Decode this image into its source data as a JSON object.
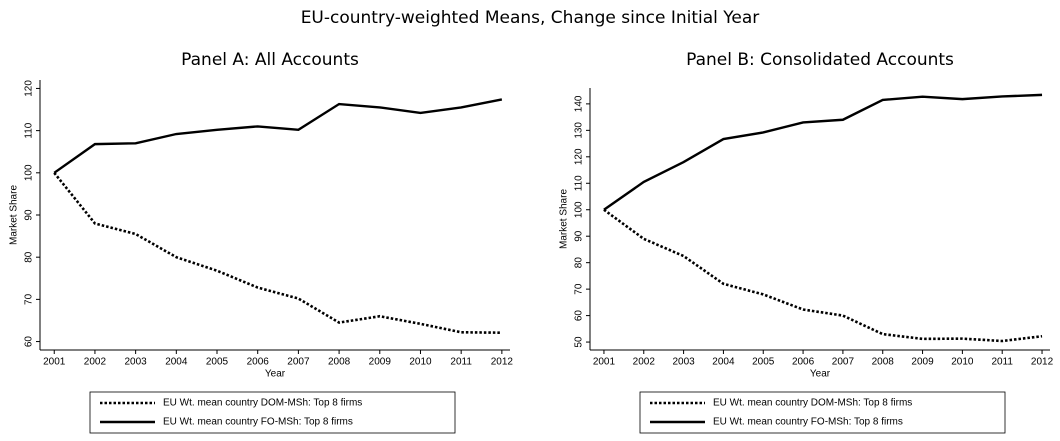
{
  "title": "EU-country-weighted Means, Change since Initial Year",
  "chart_data": [
    {
      "type": "line",
      "title": "Panel A: All Accounts",
      "x_label": "Year",
      "y_label": "Market Share",
      "x": [
        2001,
        2002,
        2003,
        2004,
        2005,
        2006,
        2007,
        2008,
        2009,
        2010,
        2011,
        2012
      ],
      "xlim": [
        2000.65,
        2012.2
      ],
      "xticks": [
        2001,
        2002,
        2003,
        2004,
        2005,
        2006,
        2007,
        2008,
        2009,
        2010,
        2011,
        2012
      ],
      "ylim": [
        58,
        122
      ],
      "yticks": [
        60,
        70,
        80,
        90,
        100,
        110,
        120
      ],
      "grid": false,
      "series": [
        {
          "name": "EU Wt. mean country DOM-MSh: Top 8 firms",
          "color": "#000000",
          "line_style": "dotted",
          "values": [
            100,
            88,
            85.5,
            80,
            76.8,
            72.8,
            70.2,
            64.5,
            66,
            64.2,
            62.2,
            62.1
          ]
        },
        {
          "name": "EU Wt. mean country FO-MSh: Top 8 firms",
          "color": "#000000",
          "line_style": "solid",
          "values": [
            100,
            106.8,
            107,
            109.2,
            110.2,
            111,
            110.2,
            116.3,
            115.5,
            114.2,
            115.5,
            117.4
          ]
        }
      ]
    },
    {
      "type": "line",
      "title": "Panel B: Consolidated Accounts",
      "x_label": "Year",
      "y_label": "Market Share",
      "x": [
        2001,
        2002,
        2003,
        2004,
        2005,
        2006,
        2007,
        2008,
        2009,
        2010,
        2011,
        2012
      ],
      "xlim": [
        2000.65,
        2012.2
      ],
      "xticks": [
        2001,
        2002,
        2003,
        2004,
        2005,
        2006,
        2007,
        2008,
        2009,
        2010,
        2011,
        2012
      ],
      "ylim": [
        47,
        146
      ],
      "yticks": [
        50,
        60,
        70,
        80,
        90,
        100,
        110,
        120,
        130,
        140
      ],
      "grid": false,
      "series": [
        {
          "name": "EU Wt. mean country DOM-MSh: Top 8 firms",
          "color": "#000000",
          "line_style": "dotted",
          "values": [
            100,
            89,
            82.5,
            72,
            68,
            62.3,
            60,
            53,
            51.2,
            51.3,
            50.4,
            52.2
          ]
        },
        {
          "name": "EU Wt. mean country FO-MSh: Top 8 firms",
          "color": "#000000",
          "line_style": "solid",
          "values": [
            100,
            110.5,
            118,
            126.7,
            129.2,
            133,
            134,
            141.5,
            142.7,
            141.8,
            142.8,
            143.4
          ]
        }
      ]
    }
  ]
}
